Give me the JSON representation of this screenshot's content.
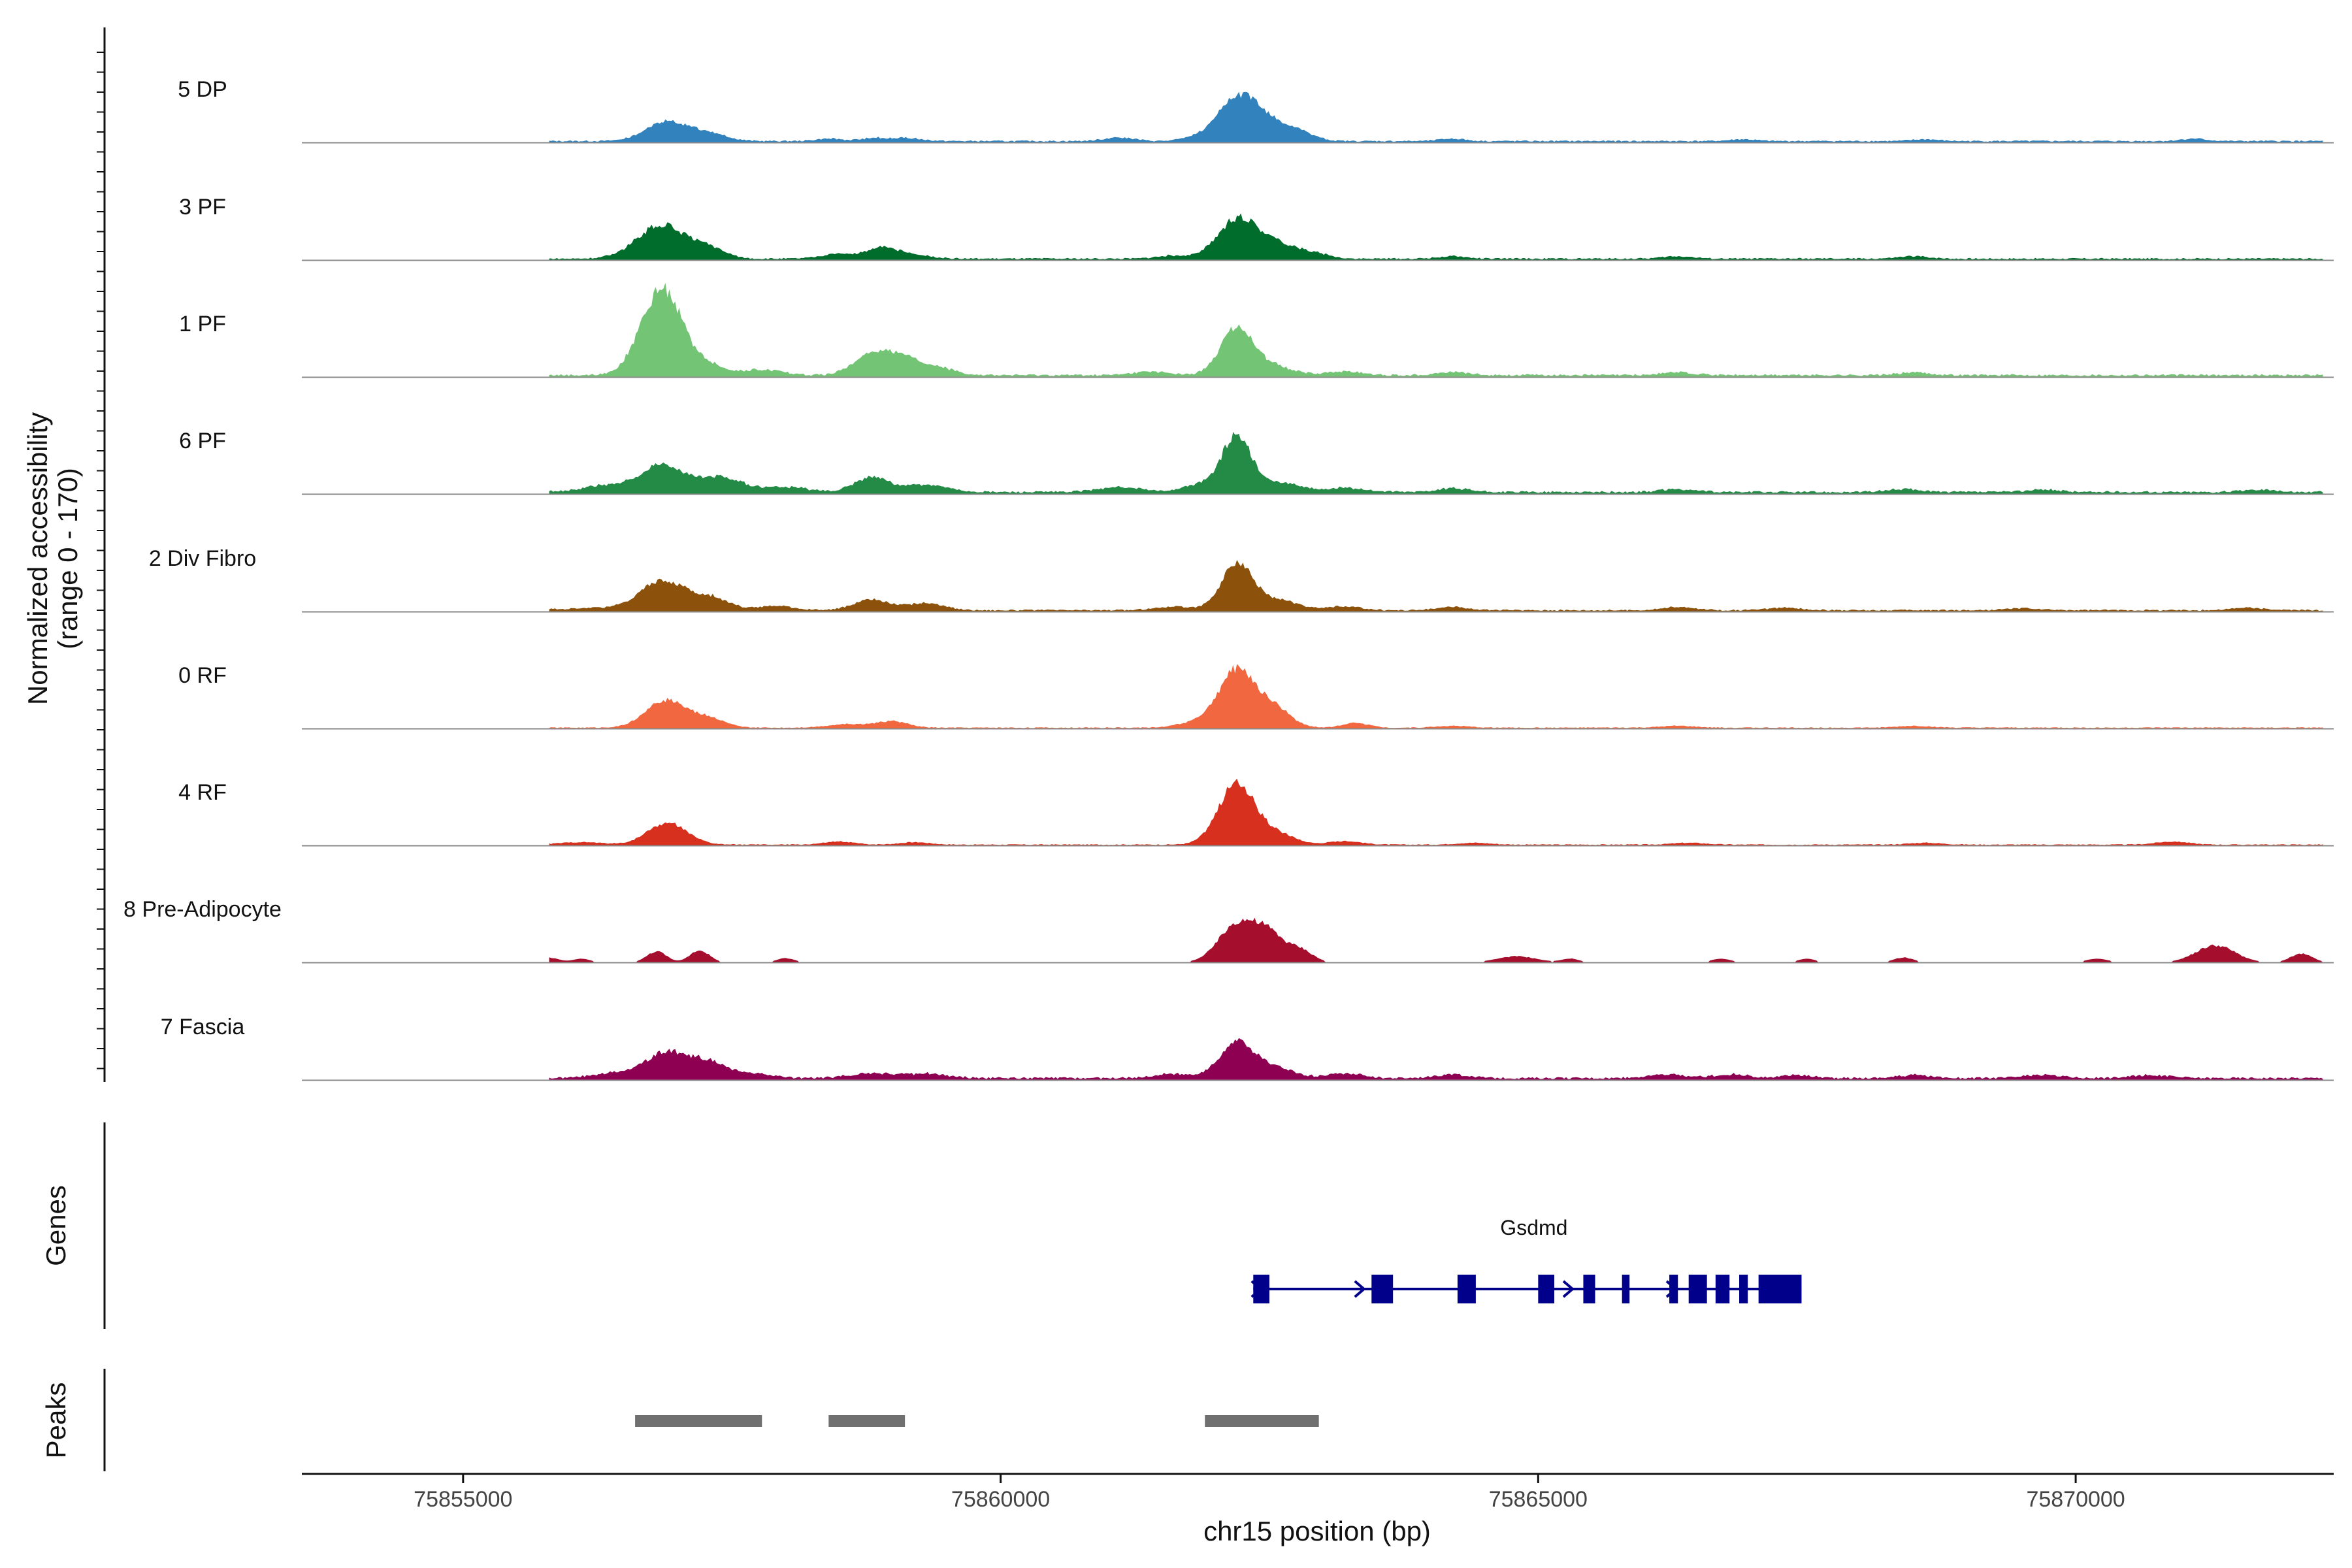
{
  "chart_data": {
    "type": "area",
    "title": "",
    "region": "chr15",
    "xlabel": "chr15 position (bp)",
    "ylabel": "Normalized accessibility",
    "ylabel_range": "(range 0 - 170)",
    "ylim": [
      0,
      170
    ],
    "xlim": [
      75853500,
      75872400
    ],
    "x_ticks": [
      75855000,
      75860000,
      75865000,
      75870000
    ],
    "x_tick_labels": [
      "75855000",
      "75860000",
      "75865000",
      "75870000"
    ],
    "tracks": [
      {
        "name": "5 DP",
        "color": "#3182BD",
        "peaks": [
          [
            75856900,
            32,
            200
          ],
          [
            75857300,
            12,
            160
          ],
          [
            75858400,
            4,
            120
          ],
          [
            75858800,
            4,
            120
          ],
          [
            75859100,
            5,
            160
          ],
          [
            75861100,
            6,
            140
          ],
          [
            75861800,
            5,
            120
          ],
          [
            75862200,
            68,
            180
          ],
          [
            75862500,
            28,
            190
          ],
          [
            75862800,
            10,
            140
          ],
          [
            75864200,
            4,
            120
          ],
          [
            75866900,
            3,
            120
          ],
          [
            75868600,
            3,
            120
          ],
          [
            75871100,
            4,
            120
          ]
        ],
        "base": 2.5,
        "sparse": false
      },
      {
        "name": "3 PF",
        "color": "#006D2C",
        "peaks": [
          [
            75856850,
            56,
            230
          ],
          [
            75857300,
            14,
            150
          ],
          [
            75858500,
            8,
            160
          ],
          [
            75858900,
            18,
            140
          ],
          [
            75859200,
            6,
            160
          ],
          [
            75861600,
            5,
            150
          ],
          [
            75862200,
            64,
            180
          ],
          [
            75862550,
            24,
            180
          ],
          [
            75862900,
            9,
            150
          ],
          [
            75864200,
            4,
            130
          ],
          [
            75866300,
            4,
            140
          ],
          [
            75868500,
            4,
            140
          ]
        ],
        "base": 2.5,
        "sparse": false
      },
      {
        "name": "1 PF",
        "color": "#74C476",
        "peaks": [
          [
            75856850,
            144,
            190
          ],
          [
            75857300,
            14,
            150
          ],
          [
            75857800,
            9,
            180
          ],
          [
            75858800,
            36,
            160
          ],
          [
            75859100,
            28,
            140
          ],
          [
            75859400,
            12,
            170
          ],
          [
            75861400,
            6,
            160
          ],
          [
            75862200,
            80,
            150
          ],
          [
            75862550,
            14,
            180
          ],
          [
            75863200,
            6,
            160
          ],
          [
            75864200,
            5,
            150
          ],
          [
            75866300,
            5,
            150
          ],
          [
            75868500,
            4,
            150
          ]
        ],
        "base": 3.5,
        "sparse": false
      },
      {
        "name": "6 PF",
        "color": "#238B45",
        "peaks": [
          [
            75855500,
            6,
            180
          ],
          [
            75856300,
            10,
            200
          ],
          [
            75856850,
            44,
            210
          ],
          [
            75857400,
            24,
            200
          ],
          [
            75858000,
            8,
            200
          ],
          [
            75858800,
            24,
            160
          ],
          [
            75859300,
            12,
            200
          ],
          [
            75861100,
            8,
            200
          ],
          [
            75861900,
            14,
            180
          ],
          [
            75862200,
            92,
            130
          ],
          [
            75862600,
            16,
            180
          ],
          [
            75863200,
            7,
            180
          ],
          [
            75864200,
            6,
            150
          ],
          [
            75866300,
            5,
            150
          ],
          [
            75868400,
            5,
            150
          ],
          [
            75869700,
            4,
            150
          ],
          [
            75871700,
            4,
            150
          ]
        ],
        "base": 3.5,
        "sparse": false
      },
      {
        "name": "2 Div Fibro",
        "color": "#8C510A",
        "peaks": [
          [
            75855600,
            3,
            180
          ],
          [
            75856200,
            4,
            180
          ],
          [
            75856850,
            48,
            210
          ],
          [
            75857300,
            20,
            170
          ],
          [
            75857900,
            7,
            170
          ],
          [
            75858800,
            18,
            160
          ],
          [
            75859300,
            12,
            170
          ],
          [
            75861600,
            6,
            160
          ],
          [
            75862200,
            76,
            150
          ],
          [
            75862600,
            16,
            180
          ],
          [
            75863200,
            6,
            160
          ],
          [
            75864200,
            5,
            150
          ],
          [
            75866300,
            5,
            150
          ],
          [
            75867300,
            4,
            150
          ],
          [
            75869500,
            3,
            150
          ],
          [
            75871600,
            4,
            150
          ]
        ],
        "base": 2.5,
        "sparse": false
      },
      {
        "name": "0 RF",
        "color": "#F16840",
        "peaks": [
          [
            75856900,
            46,
            190
          ],
          [
            75857300,
            14,
            140
          ],
          [
            75858600,
            6,
            200
          ],
          [
            75859000,
            10,
            140
          ],
          [
            75861800,
            8,
            160
          ],
          [
            75862200,
            96,
            170
          ],
          [
            75862550,
            30,
            150
          ],
          [
            75863300,
            8,
            120
          ],
          [
            75864200,
            3,
            150
          ],
          [
            75866300,
            3,
            150
          ],
          [
            75868500,
            3,
            150
          ]
        ],
        "base": 1.5,
        "sparse": false
      },
      {
        "name": "4 RF",
        "color": "#D7301F",
        "peaks": [
          [
            75856100,
            4,
            200
          ],
          [
            75856900,
            36,
            180
          ],
          [
            75858500,
            5,
            140
          ],
          [
            75859200,
            4,
            140
          ],
          [
            75862200,
            102,
            170
          ],
          [
            75862600,
            16,
            150
          ],
          [
            75863200,
            6,
            150
          ],
          [
            75864400,
            3,
            150
          ],
          [
            75866400,
            3,
            150
          ],
          [
            75868600,
            3,
            150
          ],
          [
            75870900,
            5,
            150
          ]
        ],
        "base": 1.5,
        "sparse": false
      },
      {
        "name": "8 Pre-Adipocyte",
        "color": "#A50F2D",
        "peaks": [
          [
            75855800,
            8,
            90
          ],
          [
            75856100,
            6,
            80
          ],
          [
            75856800,
            18,
            90
          ],
          [
            75857200,
            20,
            90
          ],
          [
            75858000,
            7,
            80
          ],
          [
            75862200,
            62,
            170
          ],
          [
            75862500,
            44,
            150
          ],
          [
            75862800,
            18,
            110
          ],
          [
            75864800,
            10,
            180
          ],
          [
            75865300,
            6,
            80
          ],
          [
            75866700,
            6,
            90
          ],
          [
            75867500,
            6,
            80
          ],
          [
            75868400,
            8,
            90
          ],
          [
            75870200,
            6,
            100
          ],
          [
            75871300,
            28,
            180
          ],
          [
            75872100,
            14,
            100
          ]
        ],
        "base": 0,
        "sparse": true
      },
      {
        "name": "7 Fascia",
        "color": "#8E0152",
        "peaks": [
          [
            75856400,
            8,
            200
          ],
          [
            75856900,
            42,
            200
          ],
          [
            75857300,
            24,
            160
          ],
          [
            75857700,
            8,
            170
          ],
          [
            75858800,
            8,
            200
          ],
          [
            75859300,
            7,
            200
          ],
          [
            75861600,
            7,
            180
          ],
          [
            75862200,
            58,
            160
          ],
          [
            75862550,
            16,
            180
          ],
          [
            75863200,
            8,
            160
          ],
          [
            75864200,
            6,
            160
          ],
          [
            75866200,
            6,
            180
          ],
          [
            75866800,
            6,
            160
          ],
          [
            75867400,
            5,
            150
          ],
          [
            75868500,
            5,
            150
          ],
          [
            75869700,
            5,
            180
          ],
          [
            75870700,
            5,
            180
          ]
        ],
        "base": 3.5,
        "sparse": false
      }
    ],
    "genes": {
      "axis_label": "Genes",
      "items": [
        {
          "name": "Gsdmd",
          "start": 75862350,
          "end": 75867450,
          "strand": "+",
          "color": "#00008B",
          "exons": [
            [
              75862350,
              75862500
            ],
            [
              75863450,
              75863650
            ],
            [
              75864250,
              75864420
            ],
            [
              75865000,
              75865150
            ],
            [
              75865420,
              75865530
            ],
            [
              75865780,
              75865850
            ],
            [
              75866220,
              75866300
            ],
            [
              75866400,
              75866570
            ],
            [
              75866650,
              75866780
            ],
            [
              75866870,
              75866950
            ],
            [
              75867050,
              75867450
            ]
          ],
          "arrows": [
            75862420,
            75863380,
            75865320,
            75866280
          ]
        }
      ]
    },
    "peaks_track": {
      "axis_label": "Peaks",
      "color": "#707070",
      "regions": [
        [
          75856600,
          75857780
        ],
        [
          75858400,
          75859110
        ],
        [
          75861900,
          75862960
        ]
      ]
    }
  }
}
